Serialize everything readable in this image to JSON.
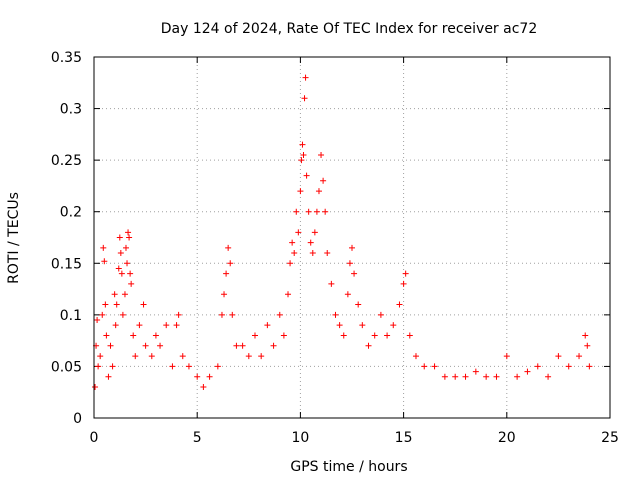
{
  "chart_data": {
    "type": "scatter",
    "title": "Day 124 of 2024, Rate Of TEC Index for receiver ac72",
    "xlabel": "GPS time / hours",
    "ylabel": "ROTI / TECUs",
    "xlim": [
      0,
      25
    ],
    "ylim": [
      0,
      0.35
    ],
    "xticks": [
      0,
      5,
      10,
      15,
      20,
      25
    ],
    "yticks": [
      0,
      0.05,
      0.1,
      0.15,
      0.2,
      0.25,
      0.3,
      0.35
    ],
    "xtick_labels": [
      "0",
      "5",
      "10",
      "15",
      "20",
      "25"
    ],
    "ytick_labels": [
      "0",
      "0.05",
      "0.1",
      "0.15",
      "0.2",
      "0.25",
      "0.3",
      "0.35"
    ],
    "grid": true,
    "marker": "plus",
    "color": "#ff0000",
    "series": [
      {
        "name": "ROTI",
        "points": [
          [
            0.05,
            0.03
          ],
          [
            0.1,
            0.07
          ],
          [
            0.15,
            0.095
          ],
          [
            0.2,
            0.05
          ],
          [
            0.3,
            0.06
          ],
          [
            0.4,
            0.1
          ],
          [
            0.45,
            0.165
          ],
          [
            0.5,
            0.152
          ],
          [
            0.55,
            0.11
          ],
          [
            0.6,
            0.08
          ],
          [
            0.7,
            0.04
          ],
          [
            0.8,
            0.07
          ],
          [
            0.9,
            0.05
          ],
          [
            1.0,
            0.12
          ],
          [
            1.05,
            0.09
          ],
          [
            1.1,
            0.11
          ],
          [
            1.2,
            0.145
          ],
          [
            1.25,
            0.175
          ],
          [
            1.3,
            0.16
          ],
          [
            1.35,
            0.14
          ],
          [
            1.4,
            0.1
          ],
          [
            1.5,
            0.12
          ],
          [
            1.55,
            0.165
          ],
          [
            1.6,
            0.15
          ],
          [
            1.65,
            0.18
          ],
          [
            1.7,
            0.175
          ],
          [
            1.75,
            0.14
          ],
          [
            1.8,
            0.13
          ],
          [
            1.9,
            0.08
          ],
          [
            2.0,
            0.06
          ],
          [
            2.2,
            0.09
          ],
          [
            2.4,
            0.11
          ],
          [
            2.5,
            0.07
          ],
          [
            2.8,
            0.06
          ],
          [
            3.0,
            0.08
          ],
          [
            3.2,
            0.07
          ],
          [
            3.5,
            0.09
          ],
          [
            3.8,
            0.05
          ],
          [
            4.0,
            0.09
          ],
          [
            4.1,
            0.1
          ],
          [
            4.3,
            0.06
          ],
          [
            4.6,
            0.05
          ],
          [
            5.0,
            0.04
          ],
          [
            5.3,
            0.03
          ],
          [
            5.6,
            0.04
          ],
          [
            6.0,
            0.05
          ],
          [
            6.2,
            0.1
          ],
          [
            6.3,
            0.12
          ],
          [
            6.4,
            0.14
          ],
          [
            6.5,
            0.165
          ],
          [
            6.6,
            0.15
          ],
          [
            6.7,
            0.1
          ],
          [
            6.9,
            0.07
          ],
          [
            7.2,
            0.07
          ],
          [
            7.5,
            0.06
          ],
          [
            7.8,
            0.08
          ],
          [
            8.1,
            0.06
          ],
          [
            8.4,
            0.09
          ],
          [
            8.7,
            0.07
          ],
          [
            9.0,
            0.1
          ],
          [
            9.2,
            0.08
          ],
          [
            9.4,
            0.12
          ],
          [
            9.5,
            0.15
          ],
          [
            9.6,
            0.17
          ],
          [
            9.7,
            0.16
          ],
          [
            9.8,
            0.2
          ],
          [
            9.9,
            0.18
          ],
          [
            10.0,
            0.22
          ],
          [
            10.05,
            0.25
          ],
          [
            10.1,
            0.265
          ],
          [
            10.15,
            0.255
          ],
          [
            10.2,
            0.31
          ],
          [
            10.25,
            0.33
          ],
          [
            10.3,
            0.235
          ],
          [
            10.4,
            0.2
          ],
          [
            10.5,
            0.17
          ],
          [
            10.6,
            0.16
          ],
          [
            10.7,
            0.18
          ],
          [
            10.8,
            0.2
          ],
          [
            10.9,
            0.22
          ],
          [
            11.0,
            0.255
          ],
          [
            11.1,
            0.23
          ],
          [
            11.2,
            0.2
          ],
          [
            11.3,
            0.16
          ],
          [
            11.5,
            0.13
          ],
          [
            11.7,
            0.1
          ],
          [
            11.9,
            0.09
          ],
          [
            12.1,
            0.08
          ],
          [
            12.3,
            0.12
          ],
          [
            12.4,
            0.15
          ],
          [
            12.5,
            0.165
          ],
          [
            12.6,
            0.14
          ],
          [
            12.8,
            0.11
          ],
          [
            13.0,
            0.09
          ],
          [
            13.3,
            0.07
          ],
          [
            13.6,
            0.08
          ],
          [
            13.9,
            0.1
          ],
          [
            14.2,
            0.08
          ],
          [
            14.5,
            0.09
          ],
          [
            14.8,
            0.11
          ],
          [
            15.0,
            0.13
          ],
          [
            15.1,
            0.14
          ],
          [
            15.3,
            0.08
          ],
          [
            15.6,
            0.06
          ],
          [
            16.0,
            0.05
          ],
          [
            16.5,
            0.05
          ],
          [
            17.0,
            0.04
          ],
          [
            17.5,
            0.04
          ],
          [
            18.0,
            0.04
          ],
          [
            18.5,
            0.045
          ],
          [
            19.0,
            0.04
          ],
          [
            19.5,
            0.04
          ],
          [
            20.0,
            0.06
          ],
          [
            20.5,
            0.04
          ],
          [
            21.0,
            0.045
          ],
          [
            21.5,
            0.05
          ],
          [
            22.0,
            0.04
          ],
          [
            22.5,
            0.06
          ],
          [
            23.0,
            0.05
          ],
          [
            23.5,
            0.06
          ],
          [
            23.8,
            0.08
          ],
          [
            23.9,
            0.07
          ],
          [
            24.0,
            0.05
          ]
        ]
      }
    ]
  }
}
